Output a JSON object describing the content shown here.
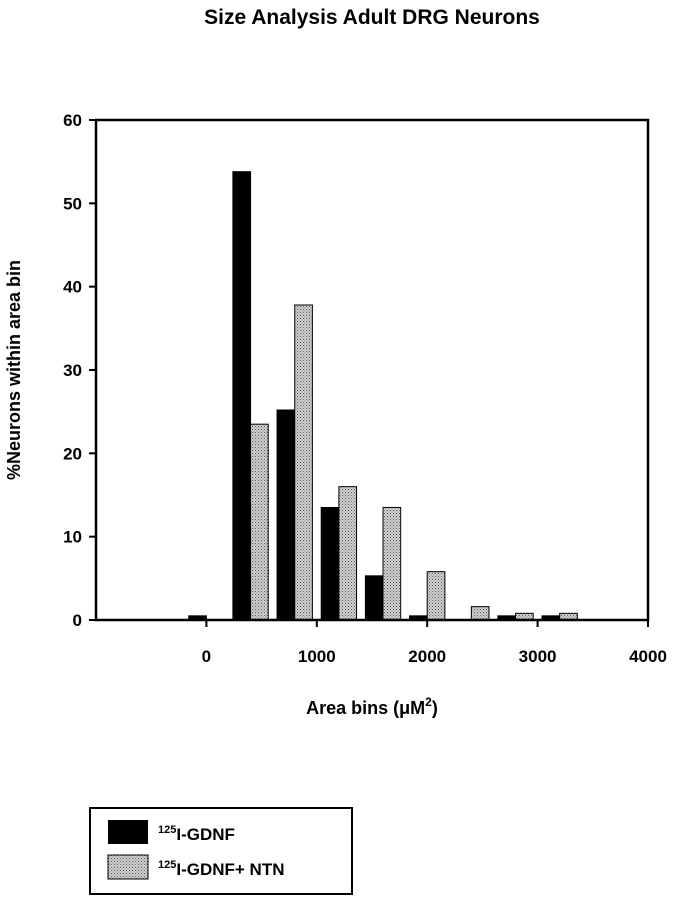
{
  "chart_data": {
    "type": "bar",
    "title": "Size Analysis Adult DRG Neurons",
    "xlabel": "Area bins (μM",
    "xlabel_sup": "2",
    "xlabel_suffix": ")",
    "ylabel": "%Neurons within area bin",
    "xlim": [
      -1000,
      4000
    ],
    "ylim": [
      0,
      60
    ],
    "xticks": [
      0,
      1000,
      2000,
      3000,
      4000
    ],
    "yticks": [
      0,
      10,
      20,
      30,
      40,
      50,
      60
    ],
    "categories": [
      0,
      400,
      800,
      1200,
      1600,
      2000,
      2400,
      2800,
      3200
    ],
    "series": [
      {
        "name_sup": "125",
        "name": "I-GDNF",
        "color": "#000000",
        "values": [
          0.5,
          53.8,
          25.2,
          13.5,
          5.3,
          0.5,
          0,
          0.5,
          0.5
        ]
      },
      {
        "name_sup": "125",
        "name": "I-GDNF+ NTN",
        "color": "#b5b5b5",
        "values": [
          0,
          23.5,
          37.8,
          16.0,
          13.5,
          5.8,
          1.6,
          0.8,
          0.8
        ]
      }
    ],
    "legend_position": "bottom-left",
    "grid": false
  }
}
